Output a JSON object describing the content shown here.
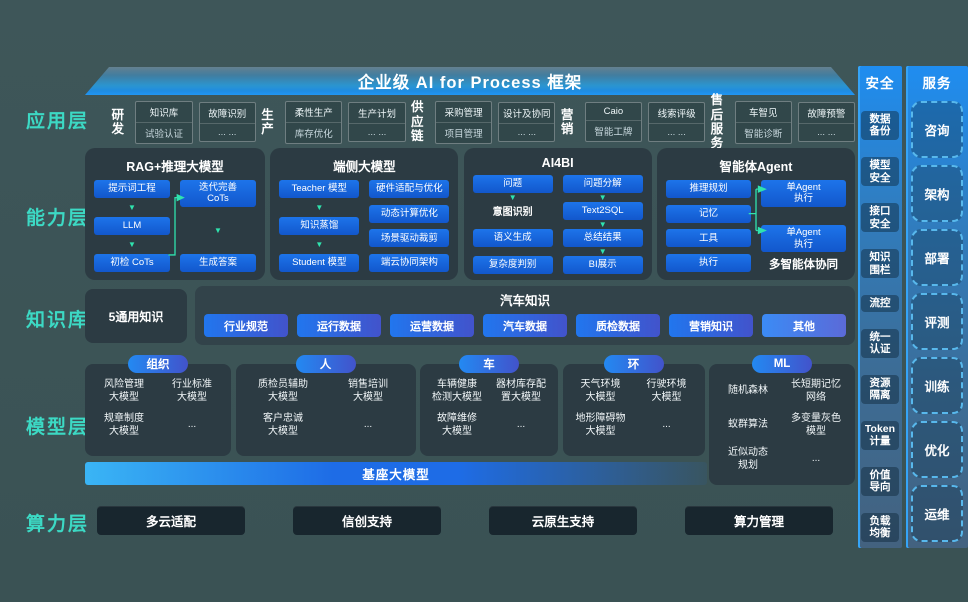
{
  "title": "企业级 AI for Process 框架",
  "icons": {
    "arrow_down": "▼"
  },
  "layers": {
    "app": {
      "label": "应用层",
      "groups": [
        {
          "name": "研发",
          "boxes": [
            {
              "top": "知识库",
              "bottom": "试验认证"
            },
            {
              "top": "故障识别",
              "bottom": "... ..."
            }
          ]
        },
        {
          "name": "生产",
          "boxes": [
            {
              "top": "柔性生产",
              "bottom": "库存优化"
            },
            {
              "top": "生产计划",
              "bottom": "... ..."
            }
          ]
        },
        {
          "name": "供应\n链",
          "boxes": [
            {
              "top": "采购管理",
              "bottom": "项目管理"
            },
            {
              "top": "设计及协同",
              "bottom": "... ..."
            }
          ]
        },
        {
          "name": "营销",
          "boxes": [
            {
              "top": "Caio",
              "bottom": "智能工牌"
            },
            {
              "top": "线索评级",
              "bottom": "... ..."
            }
          ]
        },
        {
          "name": "售后\n服务",
          "boxes": [
            {
              "top": "车智见",
              "bottom": "智能诊断"
            },
            {
              "top": "故障预警",
              "bottom": "... ..."
            }
          ]
        }
      ]
    },
    "capability": {
      "label": "能力层",
      "panels": [
        {
          "title": "RAG+推理大模型",
          "connector": "rag",
          "left": [
            {
              "type": "box",
              "text": "提示词工程"
            },
            {
              "type": "arrow"
            },
            {
              "type": "box",
              "text": "LLM"
            },
            {
              "type": "arrow"
            },
            {
              "type": "box",
              "text": "初检 CoTs"
            }
          ],
          "right": [
            {
              "type": "box",
              "text": "迭代完善\nCoTs"
            },
            {
              "type": "gap"
            },
            {
              "type": "arrow"
            },
            {
              "type": "gap"
            },
            {
              "type": "box",
              "text": "生成答案"
            }
          ]
        },
        {
          "title": "端侧大模型",
          "left": [
            {
              "type": "box",
              "text": "Teacher 模型"
            },
            {
              "type": "arrow"
            },
            {
              "type": "box",
              "text": "知识蒸馏"
            },
            {
              "type": "arrow"
            },
            {
              "type": "box",
              "text": "Student 模型"
            }
          ],
          "right": [
            {
              "type": "box",
              "text": "硬件适配与优化"
            },
            {
              "type": "gap"
            },
            {
              "type": "box",
              "text": "动态计算优化"
            },
            {
              "type": "gap"
            },
            {
              "type": "box",
              "text": "场景驱动裁剪"
            },
            {
              "type": "gap"
            },
            {
              "type": "box",
              "text": "端云协同架构"
            }
          ]
        },
        {
          "title": "AI4BI",
          "left": [
            {
              "type": "box",
              "text": "问题"
            },
            {
              "type": "arrow"
            },
            {
              "type": "plain",
              "text": "意图识别"
            },
            {
              "type": "gap"
            },
            {
              "type": "box",
              "text": "语义生成"
            },
            {
              "type": "gap"
            },
            {
              "type": "box",
              "text": "复杂度判别"
            }
          ],
          "right": [
            {
              "type": "box",
              "text": "问题分解"
            },
            {
              "type": "arrow"
            },
            {
              "type": "box",
              "text": "Text2SQL"
            },
            {
              "type": "arrow"
            },
            {
              "type": "box",
              "text": "总结结果"
            },
            {
              "type": "arrow"
            },
            {
              "type": "box",
              "text": "BI展示"
            }
          ]
        },
        {
          "title": "智能体Agent",
          "connector": "agent",
          "left": [
            {
              "type": "box",
              "text": "推理规划"
            },
            {
              "type": "gap"
            },
            {
              "type": "box",
              "text": "记忆"
            },
            {
              "type": "gap"
            },
            {
              "type": "box",
              "text": "工具"
            },
            {
              "type": "gap"
            },
            {
              "type": "box",
              "text": "执行"
            }
          ],
          "right": [
            {
              "type": "box",
              "text": "单Agent\n执行"
            },
            {
              "type": "gap"
            },
            {
              "type": "box",
              "text": "单Agent\n执行"
            },
            {
              "type": "note",
              "text": "多智能体协同"
            }
          ]
        }
      ]
    },
    "knowledge": {
      "label": "知识库",
      "general": "5通用知识",
      "auto_title": "汽车知识",
      "pills": [
        "行业规范",
        "运行数据",
        "运营数据",
        "汽车数据",
        "质检数据",
        "营销知识",
        "其他"
      ]
    },
    "model": {
      "label": "模型层",
      "cards": [
        {
          "tag": "组织",
          "tall": false,
          "cells": [
            "风险管理\n大模型",
            "行业标准\n大模型",
            "规章制度\n大模型",
            "..."
          ]
        },
        {
          "tag": "人",
          "tall": false,
          "cells": [
            "质检员辅助\n大模型",
            "销售培训\n大模型",
            "客户忠诚\n大模型",
            "..."
          ]
        },
        {
          "tag": "车",
          "tall": false,
          "cells": [
            "车辆健康\n检测大模型",
            "器材库存配\n置大模型",
            "故障维修\n大模型",
            "..."
          ]
        },
        {
          "tag": "环",
          "tall": false,
          "cells": [
            "天气环境\n大模型",
            "行驶环境\n大模型",
            "地形障碍物\n大模型",
            "..."
          ]
        },
        {
          "tag": "ML",
          "tall": true,
          "cells": [
            "随机森林",
            "长短期记忆\n网络",
            "蚁群算法",
            "多变量灰色\n模型",
            "近似动态\n规划",
            "..."
          ]
        }
      ],
      "base_bar": "基座大模型"
    },
    "compute": {
      "label": "算力层",
      "buttons": [
        "多云适配",
        "信创支持",
        "云原生支持",
        "算力管理"
      ]
    }
  },
  "security": {
    "header": "安全",
    "items": [
      "数据\n备份",
      "模型\n安全",
      "接口\n安全",
      "知识\n围栏",
      "流控",
      "统一\n认证",
      "资源\n隔离",
      "Token\n计量",
      "价值\n导向",
      "负载\n均衡"
    ]
  },
  "services": {
    "header": "服务",
    "items": [
      "咨询",
      "架构",
      "部署",
      "评测",
      "训练",
      "优化",
      "运维"
    ]
  },
  "colors": {
    "accent_teal": "#3cd9c4",
    "box_blue": "#1d74ea",
    "arrow_green": "#2fe3ae",
    "banner_blue": "#2196f3",
    "panel_dark": "#2c3b43",
    "background": "#3a5254"
  }
}
